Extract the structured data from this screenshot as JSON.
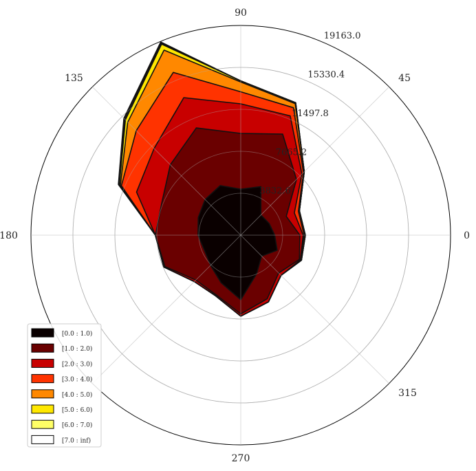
{
  "chart_data": {
    "type": "polar-stacked-area",
    "title": "",
    "angle_labels": [
      "0",
      "45",
      "90",
      "135",
      "180",
      "270",
      "315"
    ],
    "angle_label_degrees": [
      0,
      45,
      90,
      135,
      180,
      270,
      315
    ],
    "radial_ticks": [
      3832.6,
      7665.2,
      11497.8,
      15330.4,
      19163.0
    ],
    "radial_tick_labels": [
      "3832.6",
      "7665.2",
      "11497.8",
      "15330.4",
      "19163.0"
    ],
    "rmax": 19163.0,
    "grid": true,
    "legend_position": "lower-left",
    "directions_deg": [
      0,
      22.5,
      45,
      67.5,
      90,
      112.5,
      135,
      157.5,
      180,
      202.5,
      225,
      247.5,
      270,
      292.5,
      315,
      337.5
    ],
    "series": [
      {
        "name": "[0.0 : 1.0)",
        "color": "#0a0000",
        "values": [
          3100,
          2800,
          2600,
          4800,
          4200,
          4900,
          4600,
          4200,
          3900,
          3600,
          3900,
          4700,
          5900,
          3800,
          2700,
          3600
        ]
      },
      {
        "name": "[1.0 : 2.0)",
        "color": "#6a0000",
        "values": [
          5400,
          4500,
          7200,
          10000,
          9300,
          10600,
          9100,
          7800,
          7800,
          7500,
          5800,
          5900,
          7200,
          6300,
          4900,
          5800
        ]
      },
      {
        "name": "[2.0 : 3.0)",
        "color": "#c80000",
        "values": [
          5700,
          5300,
          7900,
          11800,
          12000,
          13600,
          11200,
          10300,
          7800,
          7600,
          6000,
          6000,
          7400,
          6600,
          5200,
          5900
        ]
      },
      {
        "name": "[3.0 : 4.0)",
        "color": "#ff3300",
        "values": [
          5800,
          5700,
          8100,
          12600,
          13100,
          16100,
          13500,
          11800,
          7800,
          7600,
          6000,
          6000,
          7400,
          6600,
          5200,
          5900
        ]
      },
      {
        "name": "[4.0 : 5.0)",
        "color": "#ff8800",
        "values": [
          5900,
          5800,
          8200,
          13000,
          14000,
          18300,
          14600,
          11900,
          7800,
          7600,
          6000,
          6000,
          7400,
          6600,
          5200,
          6000
        ]
      },
      {
        "name": "[5.0 : 6.0)",
        "color": "#ffe800",
        "values": [
          5900,
          5800,
          8200,
          13100,
          14100,
          18900,
          14900,
          12000,
          7800,
          7600,
          6000,
          6000,
          7400,
          6600,
          5200,
          6000
        ]
      },
      {
        "name": "[6.0 : 7.0)",
        "color": "#ffff66",
        "values": [
          5900,
          5800,
          8200,
          13100,
          14100,
          19000,
          15000,
          12000,
          7800,
          7600,
          6000,
          6000,
          7400,
          6600,
          5200,
          6000
        ]
      },
      {
        "name": "[7.0 : inf)",
        "color": "#ffffff",
        "values": [
          5900,
          5800,
          8200,
          13100,
          14100,
          19100,
          15100,
          12100,
          7800,
          7600,
          6000,
          6000,
          7400,
          6600,
          5200,
          6000
        ]
      }
    ]
  }
}
